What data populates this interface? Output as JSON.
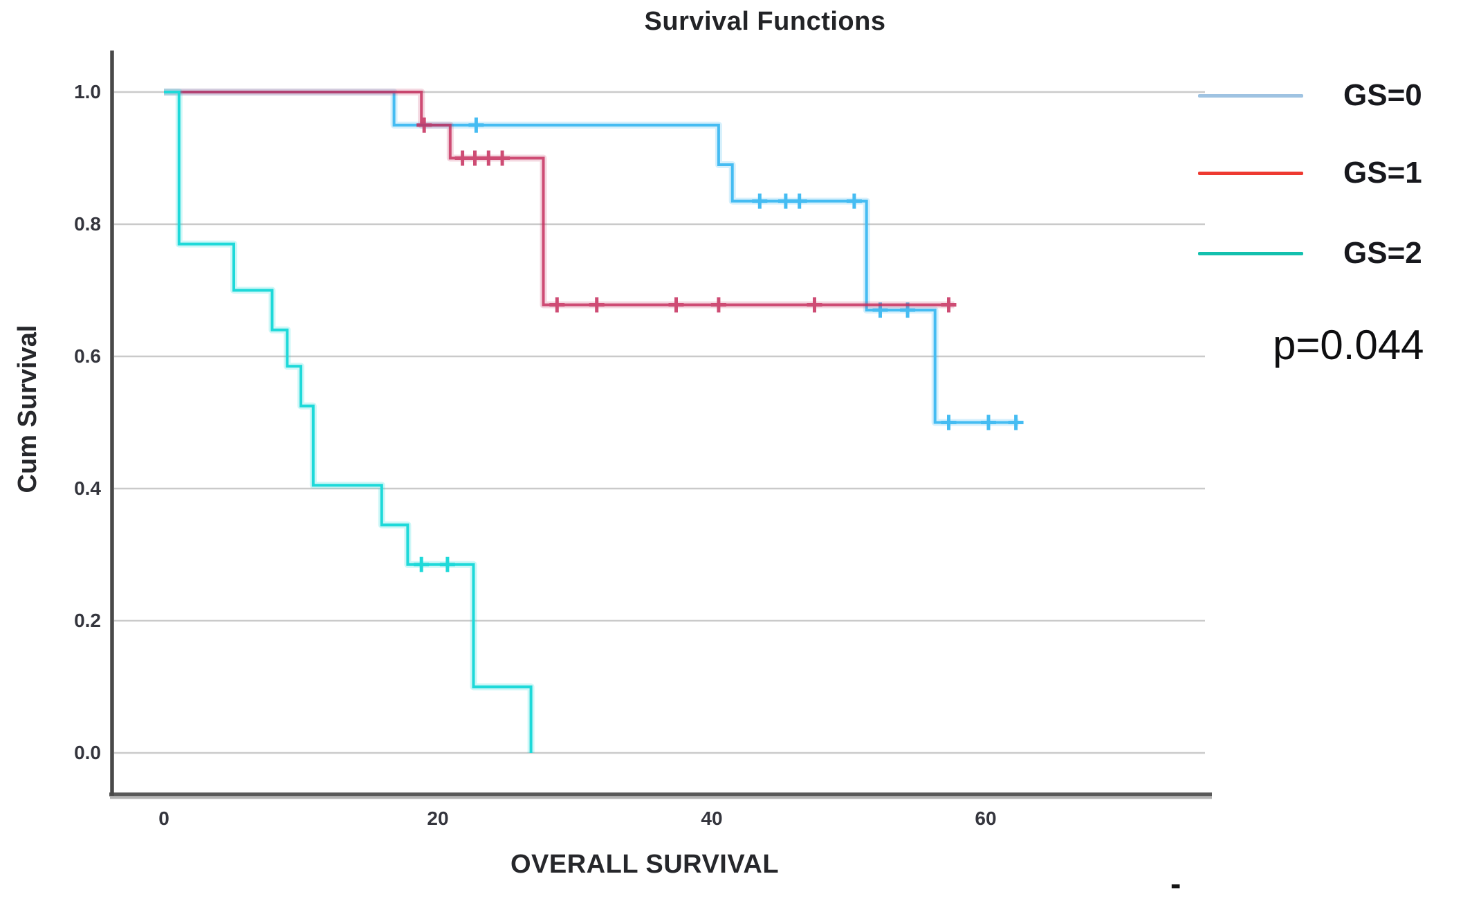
{
  "title": "Survival Functions",
  "x_axis": {
    "label": "OVERALL SURVIVAL",
    "tick_labels": [
      "0",
      "20",
      "40",
      "60"
    ]
  },
  "y_axis": {
    "label": "Cum Survival",
    "tick_labels": [
      "1.0",
      "0.8",
      "0.6",
      "0.4",
      "0.2",
      "0.0"
    ]
  },
  "annotation": {
    "p_value": "p=0.044"
  },
  "legend": {
    "entries": [
      {
        "label": "GS=0",
        "swatch_color": "#9fc3e2"
      },
      {
        "label": "GS=1",
        "swatch_color": "#ee3a31"
      },
      {
        "label": "GS=2",
        "swatch_color": "#13c0ae"
      }
    ]
  },
  "misc": {
    "corner_dash": "-"
  },
  "chart_data": {
    "type": "line",
    "subtype": "kaplan-meier-step",
    "title": "Survival Functions",
    "xlabel": "OVERALL SURVIVAL",
    "ylabel": "Cum Survival",
    "xlim": [
      -3.8,
      76.2
    ],
    "ylim": [
      -0.063,
      1.063
    ],
    "x_ticks": [
      0,
      20,
      40,
      60
    ],
    "y_ticks": [
      1.0,
      0.8,
      0.6,
      0.4,
      0.2,
      0.0
    ],
    "grid": "horizontal-only",
    "legend_position": "right-outside",
    "p_value_text": "p=0.044",
    "series": [
      {
        "name": "GS=0",
        "color": "#45bcf2",
        "step_points": [
          [
            0,
            1.0
          ],
          [
            16.8,
            1.0
          ],
          [
            16.8,
            0.95
          ],
          [
            40.5,
            0.95
          ],
          [
            40.5,
            0.89
          ],
          [
            41.5,
            0.89
          ],
          [
            41.5,
            0.835
          ],
          [
            51.3,
            0.835
          ],
          [
            51.3,
            0.67
          ],
          [
            56.3,
            0.67
          ],
          [
            56.3,
            0.5
          ],
          [
            62.4,
            0.5
          ]
        ],
        "censored_points": [
          [
            22.8,
            0.95
          ],
          [
            43.5,
            0.835
          ],
          [
            45.4,
            0.835
          ],
          [
            46.4,
            0.835
          ],
          [
            50.4,
            0.835
          ],
          [
            52.3,
            0.67
          ],
          [
            54.3,
            0.67
          ],
          [
            57.3,
            0.5
          ],
          [
            60.2,
            0.5
          ],
          [
            62.2,
            0.5
          ]
        ]
      },
      {
        "name": "GS=1",
        "color": "#c62d5c",
        "step_points": [
          [
            0,
            1.0
          ],
          [
            18.8,
            1.0
          ],
          [
            18.8,
            0.95
          ],
          [
            20.9,
            0.95
          ],
          [
            20.9,
            0.9
          ],
          [
            27.7,
            0.9
          ],
          [
            27.7,
            0.678
          ],
          [
            57.7,
            0.678
          ]
        ],
        "censored_points": [
          [
            19.0,
            0.95
          ],
          [
            21.8,
            0.9
          ],
          [
            22.7,
            0.9
          ],
          [
            23.7,
            0.9
          ],
          [
            24.7,
            0.9
          ],
          [
            28.7,
            0.678
          ],
          [
            31.6,
            0.678
          ],
          [
            37.4,
            0.678
          ],
          [
            40.5,
            0.678
          ],
          [
            47.5,
            0.678
          ],
          [
            57.3,
            0.678
          ]
        ]
      },
      {
        "name": "GS=2",
        "color": "#1ed9d9",
        "step_points": [
          [
            0,
            1.0
          ],
          [
            1.1,
            1.0
          ],
          [
            1.1,
            0.77
          ],
          [
            5.1,
            0.77
          ],
          [
            5.1,
            0.7
          ],
          [
            7.9,
            0.7
          ],
          [
            7.9,
            0.64
          ],
          [
            9.0,
            0.64
          ],
          [
            9.0,
            0.585
          ],
          [
            10.0,
            0.585
          ],
          [
            10.0,
            0.525
          ],
          [
            10.9,
            0.525
          ],
          [
            10.9,
            0.405
          ],
          [
            15.9,
            0.405
          ],
          [
            15.9,
            0.345
          ],
          [
            17.8,
            0.345
          ],
          [
            17.8,
            0.285
          ],
          [
            22.6,
            0.285
          ],
          [
            22.6,
            0.1
          ],
          [
            26.8,
            0.1
          ],
          [
            26.8,
            0.0
          ]
        ],
        "censored_points": [
          [
            18.8,
            0.285
          ],
          [
            20.7,
            0.285
          ]
        ]
      }
    ]
  }
}
